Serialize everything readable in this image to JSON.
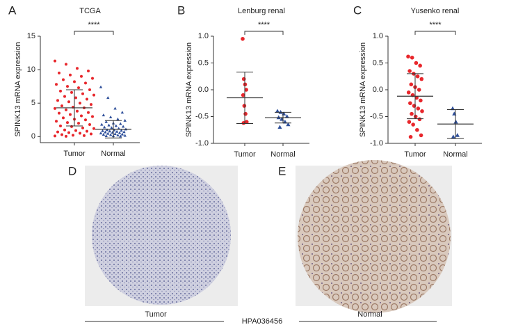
{
  "chart_data": [
    {
      "type": "dot",
      "panel": "A",
      "title": "TCGA",
      "ylabel": "SPINK13 mRNA expression",
      "categories": [
        "Tumor",
        "Normal"
      ],
      "colors": [
        "#e8262b",
        "#2e4f9a"
      ],
      "markers": [
        "circle",
        "triangle"
      ],
      "values": [
        [
          11.3,
          10.8,
          10.2,
          9.8,
          9.5,
          9.2,
          9.0,
          8.7,
          8.5,
          8.2,
          8.0,
          7.8,
          7.5,
          7.3,
          7.0,
          6.8,
          6.6,
          6.4,
          6.2,
          6.0,
          5.8,
          5.6,
          5.4,
          5.2,
          5.0,
          4.8,
          4.6,
          4.4,
          4.3,
          4.2,
          4.0,
          3.8,
          3.6,
          3.5,
          3.3,
          3.1,
          3.0,
          2.8,
          2.6,
          2.5,
          2.3,
          2.1,
          2.0,
          1.8,
          1.6,
          1.5,
          1.3,
          1.2,
          1.0,
          0.9,
          0.8,
          0.7,
          0.6,
          0.5,
          0.4,
          0.3,
          0.2,
          0.15,
          0.1,
          0.05
        ],
        [
          7.4,
          5.8,
          4.2,
          3.6,
          3.2,
          2.9,
          2.6,
          2.4,
          2.2,
          2.0,
          1.9,
          1.8,
          1.7,
          1.6,
          1.5,
          1.4,
          1.3,
          1.2,
          1.1,
          1.0,
          0.95,
          0.9,
          0.85,
          0.8,
          0.75,
          0.7,
          0.65,
          0.6,
          0.55,
          0.5,
          0.45,
          0.4,
          0.35,
          0.3,
          0.25,
          0.2,
          0.15,
          0.1,
          0.08,
          0.05
        ]
      ],
      "mean": [
        4.3,
        1.1
      ],
      "sd": [
        2.7,
        1.3
      ],
      "significance": "****",
      "ylim": [
        -0.9,
        15
      ],
      "yticks": [
        0,
        5,
        10,
        15
      ]
    },
    {
      "type": "dot",
      "panel": "B",
      "title": "Lenburg renal",
      "ylabel": "SPINK13 mRNA expression",
      "categories": [
        "Tumor",
        "Normal"
      ],
      "colors": [
        "#e8262b",
        "#2e4f9a"
      ],
      "markers": [
        "circle",
        "triangle"
      ],
      "values": [
        [
          0.95,
          0.2,
          0.1,
          0.0,
          -0.1,
          -0.3,
          -0.45,
          -0.6,
          -0.62
        ],
        [
          -0.4,
          -0.42,
          -0.45,
          -0.5,
          -0.52,
          -0.55,
          -0.6,
          -0.65,
          -0.7
        ]
      ],
      "mean": [
        -0.15,
        -0.52
      ],
      "sd": [
        0.48,
        0.1
      ],
      "significance": "****",
      "ylim": [
        -1,
        1
      ],
      "yticks": [
        {
          "value": -1,
          "label": "-1.0"
        },
        -0.5,
        {
          "value": 0,
          "label": "0.0"
        },
        0.5,
        {
          "value": 1,
          "label": "1.0"
        }
      ]
    },
    {
      "type": "dot",
      "panel": "C",
      "title": "Yusenko renal",
      "ylabel": "SPINK13 mRNA expression",
      "categories": [
        "Tumor",
        "Normal"
      ],
      "colors": [
        "#e8262b",
        "#2e4f9a"
      ],
      "markers": [
        "circle",
        "triangle"
      ],
      "values": [
        [
          0.62,
          0.6,
          0.5,
          0.45,
          0.35,
          0.3,
          0.25,
          0.2,
          0.1,
          0.05,
          0.0,
          -0.05,
          -0.1,
          -0.15,
          -0.2,
          -0.25,
          -0.3,
          -0.35,
          -0.4,
          -0.45,
          -0.5,
          -0.55,
          -0.6,
          -0.65,
          -0.75,
          -0.85,
          -0.88
        ],
        [
          -0.35,
          -0.45,
          -0.6,
          -0.85,
          -0.88
        ]
      ],
      "mean": [
        -0.12,
        -0.64
      ],
      "sd": [
        0.42,
        0.27
      ],
      "significance": "****",
      "ylim": [
        -1,
        1
      ],
      "yticks": [
        {
          "value": -1,
          "label": "-1.0"
        },
        -0.5,
        {
          "value": 0,
          "label": "0.0"
        },
        0.5,
        {
          "value": 1,
          "label": "1.0"
        }
      ]
    }
  ],
  "figure": {
    "panels": [
      "D",
      "E"
    ],
    "labels": [
      "Tumor",
      "Normal"
    ],
    "antibody": "HPA036456"
  }
}
